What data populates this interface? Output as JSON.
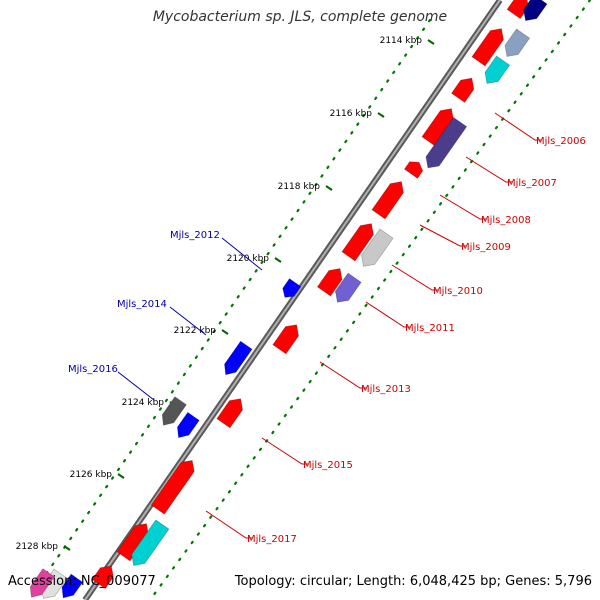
{
  "title": "Mycobacterium sp. JLS, complete genome",
  "footer": {
    "accession_label": "Accession:",
    "accession": "NC_009077",
    "topology_label": "Topology:",
    "topology": "circular",
    "length_label": "Length:",
    "length": "6,048,425 bp",
    "genes_label": "Genes:",
    "genes": "5,796"
  },
  "colors": {
    "forward_cds": "#ff0000",
    "reverse_cds": "#0000ff",
    "backbone": "#808080",
    "gc_dots": "#007700",
    "tick_marks": "#006600",
    "label_forward": "#cc0000",
    "label_reverse": "#0000aa"
  },
  "ticks": [
    "2114 kbp",
    "2116 kbp",
    "2118 kbp",
    "2120 kbp",
    "2122 kbp",
    "2124 kbp",
    "2126 kbp",
    "2128 kbp"
  ],
  "labels_right": [
    "Mjls_2006",
    "Mjls_2007",
    "Mjls_2008",
    "Mjls_2009",
    "Mjls_2010",
    "Mjls_2011",
    "Mjls_2013",
    "Mjls_2015",
    "Mjls_2017"
  ],
  "labels_left": [
    "Mjls_2012",
    "Mjls_2014",
    "Mjls_2016"
  ]
}
